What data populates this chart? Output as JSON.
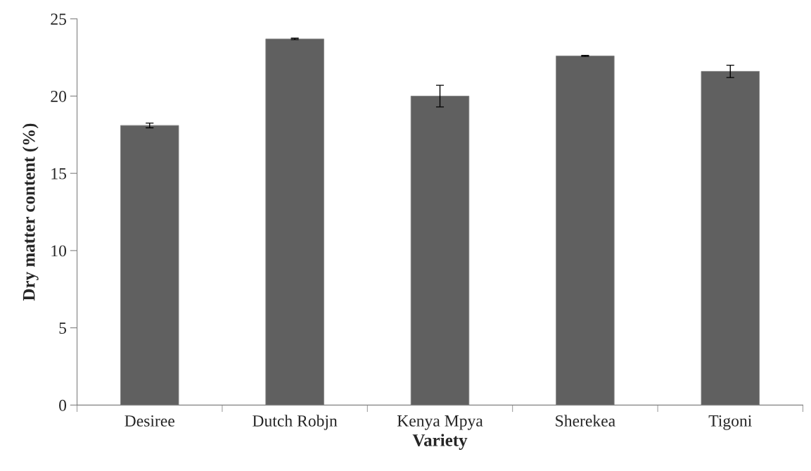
{
  "chart_data": {
    "type": "bar",
    "xlabel": "Variety",
    "ylabel": "Dry matter content (%)",
    "categories": [
      "Desiree",
      "Dutch Robjn",
      "Kenya Mpya",
      "Sherekea",
      "Tigoni"
    ],
    "values": [
      18.1,
      23.7,
      20.0,
      22.6,
      21.6
    ],
    "errors": [
      0.15,
      0.05,
      0.7,
      0.03,
      0.4
    ],
    "color": "#606060",
    "ylim": [
      0,
      25
    ],
    "yticks": [
      0,
      5,
      10,
      15,
      20,
      25
    ],
    "grid": false
  }
}
